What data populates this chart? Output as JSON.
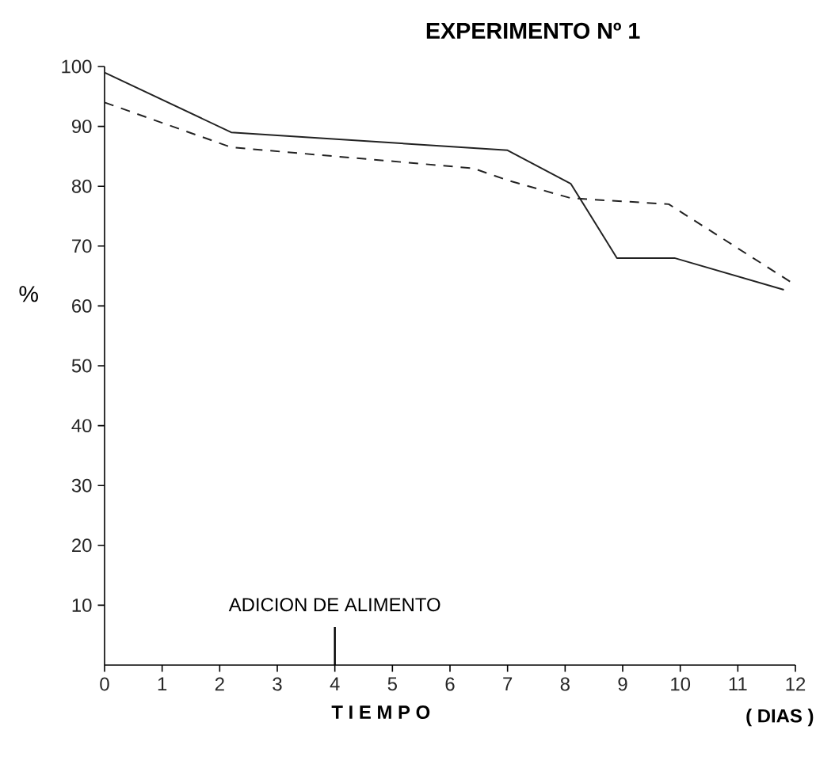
{
  "chart_data": {
    "type": "line",
    "title": "EXPERIMENTO Nº 1",
    "xlabel": "T I E M P O",
    "ylabel": "%",
    "annotations": [
      "( DIAS )"
    ],
    "series": [
      {
        "color": "#222222",
        "line_style": "solid",
        "x": [
          0,
          2.2,
          7,
          8.1,
          8.9,
          9.9,
          11.8
        ],
        "values": [
          99,
          89,
          86,
          80.4,
          68,
          68,
          62.7
        ]
      },
      {
        "color": "#222222",
        "line_style": "dashed",
        "x": [
          0,
          2.2,
          6.4,
          7,
          8.1,
          9.8,
          12
        ],
        "values": [
          94,
          86.5,
          83,
          81,
          78,
          77,
          63.5
        ]
      }
    ],
    "xlim": [
      0,
      12
    ],
    "ylim": [
      0,
      100
    ],
    "xticks": [
      0,
      1,
      2,
      3,
      4,
      5,
      6,
      7,
      8,
      9,
      10,
      11,
      12
    ],
    "yticks": [
      10,
      20,
      30,
      40,
      50,
      60,
      70,
      80,
      90,
      100
    ],
    "ref_lines": [
      {
        "axis": "x",
        "value": 4,
        "label": "ADICION DE ALIMENTO"
      }
    ],
    "grid": false,
    "marker": "none"
  }
}
